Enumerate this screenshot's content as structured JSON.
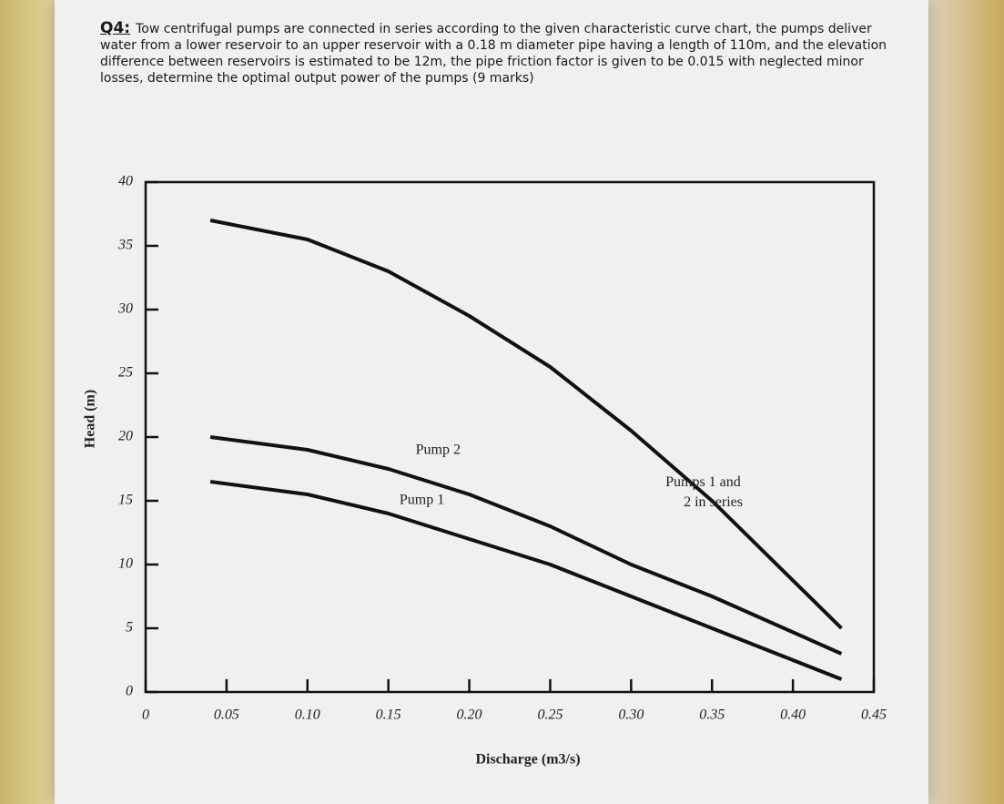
{
  "question": {
    "number": "Q4:",
    "text": "Tow centrifugal pumps are connected in series according to the given characteristic curve chart, the pumps deliver water from a lower reservoir to an upper reservoir with a 0.18 m diameter pipe having a length of 110m, and the elevation difference between reservoirs is estimated to be 12m, the pipe friction factor is given to be 0.015 with neglected minor losses, determine the optimal output power of the pumps (9 marks)"
  },
  "chart_data": {
    "type": "line",
    "x_label": "Discharge (m3/s)",
    "y_label": "Head (m)",
    "x": [
      0.04,
      0.1,
      0.15,
      0.2,
      0.25,
      0.3,
      0.35,
      0.43
    ],
    "series": [
      {
        "name": "Pump 1",
        "color": "#111111",
        "values": [
          16.5,
          15.5,
          14,
          12,
          10,
          7.5,
          5,
          1
        ]
      },
      {
        "name": "Pump 2",
        "color": "#111111",
        "values": [
          20,
          19,
          17.5,
          15.5,
          13,
          10,
          7.5,
          3
        ]
      },
      {
        "name": "Pumps 1 and 2 in series",
        "color": "#111111",
        "values": [
          37,
          35.5,
          33,
          29.5,
          25.5,
          20.5,
          15,
          5
        ]
      }
    ],
    "xlim": [
      0,
      0.45
    ],
    "xticks": [
      0,
      0.05,
      {
        "value": 0.1,
        "label": "0.10"
      },
      0.15,
      {
        "value": 0.2,
        "label": "0.20"
      },
      0.25,
      {
        "value": 0.3,
        "label": "0.30"
      },
      0.35,
      {
        "value": 0.4,
        "label": "0.40"
      },
      0.45
    ],
    "ylim": [
      0,
      40
    ],
    "yticks": [
      0,
      5,
      10,
      15,
      20,
      25,
      30,
      35,
      40
    ],
    "grid": false
  }
}
